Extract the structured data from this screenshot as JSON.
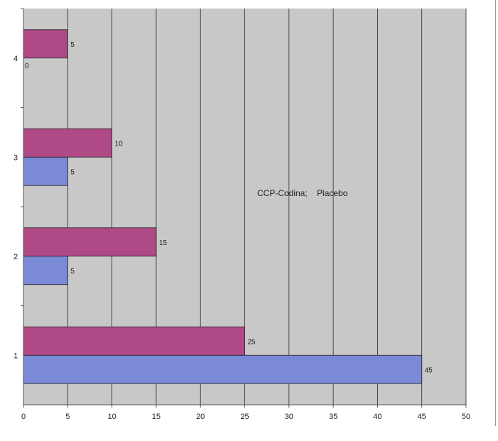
{
  "chart_data": {
    "type": "bar",
    "orientation": "horizontal",
    "categories": [
      "1",
      "2",
      "3",
      "4"
    ],
    "series": [
      {
        "name": "",
        "color": "#7b8ad6",
        "values": [
          45,
          5,
          5,
          0
        ]
      },
      {
        "name": "",
        "color": "#b04a86",
        "values": [
          25,
          15,
          10,
          5
        ]
      }
    ],
    "data_labels": {
      "s0": [
        "45",
        "5",
        "5",
        "0"
      ],
      "s1": [
        "25",
        "15",
        "10",
        "5"
      ]
    },
    "xticks": [
      "0",
      "5",
      "10",
      "15",
      "20",
      "25",
      "30",
      "35",
      "40",
      "45",
      "50"
    ],
    "xlim": [
      0,
      50
    ],
    "grid": "vertical",
    "plot_background": "#c8c8c8",
    "annotation": "CCP-Codina;    Placebo",
    "title": "",
    "xlabel": "",
    "ylabel": ""
  }
}
